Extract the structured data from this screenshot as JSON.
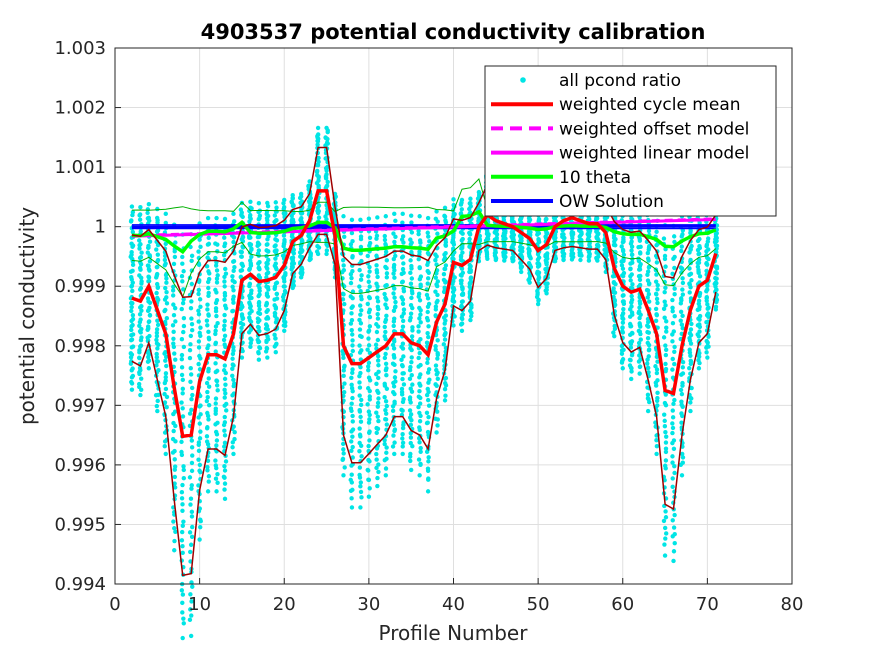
{
  "chart_data": {
    "type": "line",
    "title": "4903537 potential conductivity calibration",
    "xlabel": "Profile Number",
    "ylabel": "potential conductivity",
    "xlim": [
      0,
      80
    ],
    "ylim": [
      0.994,
      1.003
    ],
    "xticks": [
      "0",
      "10",
      "20",
      "30",
      "40",
      "50",
      "60",
      "70",
      "80"
    ],
    "yticks": [
      "0.994",
      "0.995",
      "0.996",
      "0.997",
      "0.998",
      "0.999",
      "1",
      "1.001",
      "1.002",
      "1.003"
    ],
    "grid": true,
    "legend_position": "top-right",
    "colors": {
      "pcond": "#00e5e5",
      "cycle_mean": "#ff0000",
      "cycle_env": "#a00000",
      "offset": "#ff00ff",
      "linear": "#ff00ff",
      "theta": "#00ff00",
      "theta_env": "#00b000",
      "ow": "#0000ff"
    },
    "legend": [
      {
        "label": "all pcond ratio",
        "style": "dot",
        "color": "#00e5e5"
      },
      {
        "label": "weighted cycle mean",
        "style": "solid",
        "color": "#ff0000"
      },
      {
        "label": "weighted offset model",
        "style": "dashed",
        "color": "#ff00ff"
      },
      {
        "label": "weighted linear model",
        "style": "solid",
        "color": "#ff00ff"
      },
      {
        "label": "10 theta",
        "style": "solid",
        "color": "#00ff00"
      },
      {
        "label": "OW Solution",
        "style": "solid",
        "color": "#0000ff"
      }
    ],
    "x": [
      2,
      3,
      4,
      5,
      6,
      7,
      8,
      9,
      10,
      11,
      12,
      13,
      14,
      15,
      16,
      17,
      18,
      19,
      20,
      21,
      22,
      23,
      24,
      25,
      26,
      27,
      28,
      29,
      30,
      31,
      32,
      33,
      34,
      35,
      36,
      37,
      38,
      39,
      40,
      41,
      42,
      43,
      44,
      45,
      46,
      47,
      48,
      49,
      50,
      51,
      52,
      53,
      54,
      55,
      56,
      57,
      58,
      59,
      60,
      61,
      62,
      63,
      64,
      65,
      66,
      67,
      68,
      69,
      70,
      71
    ],
    "series": [
      {
        "name": "weighted cycle mean",
        "values": [
          0.9988,
          0.99875,
          0.999,
          0.9986,
          0.9982,
          0.9973,
          0.99648,
          0.9965,
          0.9974,
          0.99785,
          0.99785,
          0.99778,
          0.9982,
          0.9991,
          0.9992,
          0.99908,
          0.9991,
          0.99915,
          0.99935,
          0.99975,
          0.99985,
          1.0001,
          1.0006,
          1.0006,
          0.99985,
          0.998,
          0.9977,
          0.9977,
          0.9978,
          0.9979,
          0.998,
          0.9982,
          0.9982,
          0.99805,
          0.998,
          0.99785,
          0.9984,
          0.9987,
          0.9994,
          0.99935,
          0.99945,
          1.0,
          1.0002,
          1.0001,
          1.00005,
          1.0,
          0.9999,
          0.9998,
          0.9996,
          0.9997,
          1.0,
          1.0001,
          1.00015,
          1.0001,
          1.00005,
          1.00005,
          0.9999,
          0.9993,
          0.999,
          0.9989,
          0.99895,
          0.9986,
          0.9982,
          0.99725,
          0.9972,
          0.998,
          0.9986,
          0.999,
          0.9991,
          0.99955
        ]
      }
    ]
  }
}
